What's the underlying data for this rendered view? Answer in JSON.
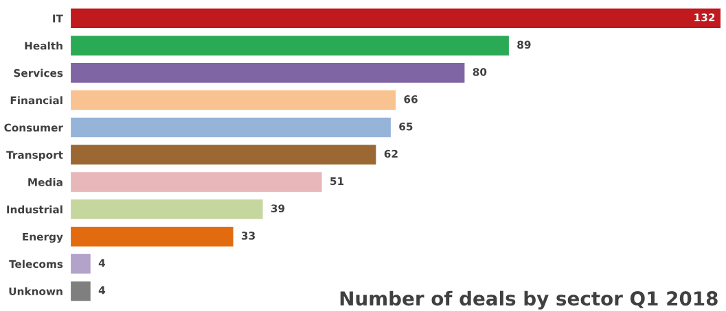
{
  "chart_data": {
    "type": "bar",
    "orientation": "horizontal",
    "title": "Number of deals by sector Q1 2018",
    "categories": [
      "IT",
      "Health",
      "Services",
      "Financial",
      "Consumer",
      "Transport",
      "Media",
      "Industrial",
      "Energy",
      "Telecoms",
      "Unknown"
    ],
    "values": [
      132,
      89,
      80,
      66,
      65,
      62,
      51,
      39,
      33,
      4,
      4
    ],
    "colors": [
      "#c0191e",
      "#2aaa55",
      "#7f65a3",
      "#f8c291",
      "#96b3d9",
      "#9b6833",
      "#e8b7ba",
      "#c5d79f",
      "#e36b0f",
      "#b3a2c9",
      "#7f7f7f"
    ],
    "data_labels": true,
    "grid": false,
    "legend": false
  }
}
